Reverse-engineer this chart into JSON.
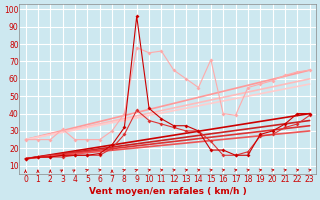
{
  "background_color": "#cde8f0",
  "grid_color": "#ffffff",
  "xlabel": "Vent moyen/en rafales ( km/h )",
  "xlim": [
    -0.5,
    23.5
  ],
  "ylim": [
    5,
    103
  ],
  "yticks": [
    10,
    20,
    30,
    40,
    50,
    60,
    70,
    80,
    90,
    100
  ],
  "xticks": [
    0,
    1,
    2,
    3,
    4,
    5,
    6,
    7,
    8,
    9,
    10,
    11,
    12,
    13,
    14,
    15,
    16,
    17,
    18,
    19,
    20,
    21,
    22,
    23
  ],
  "x": [
    0,
    1,
    2,
    3,
    4,
    5,
    6,
    7,
    8,
    9,
    10,
    11,
    12,
    13,
    14,
    15,
    16,
    17,
    18,
    19,
    20,
    21,
    22,
    23
  ],
  "series": [
    {
      "y": [
        14,
        15,
        15,
        16,
        16,
        16,
        17,
        22,
        32,
        96,
        43,
        37,
        33,
        33,
        30,
        19,
        19,
        16,
        16,
        28,
        30,
        34,
        40,
        40
      ],
      "color": "#cc0000",
      "lw": 0.8,
      "marker": "D",
      "ms": 2.0,
      "zorder": 5
    },
    {
      "y": [
        14,
        15,
        15,
        15,
        16,
        16,
        16,
        20,
        28,
        42,
        36,
        34,
        32,
        30,
        30,
        24,
        16,
        16,
        18,
        27,
        28,
        32,
        34,
        39
      ],
      "color": "#dd3333",
      "lw": 0.8,
      "marker": "D",
      "ms": 2.0,
      "zorder": 4
    },
    {
      "y": [
        25,
        25,
        25,
        31,
        25,
        25,
        25,
        30,
        40,
        78,
        75,
        76,
        65,
        60,
        55,
        71,
        40,
        39,
        55,
        57,
        59,
        62,
        64,
        65
      ],
      "color": "#ffaaaa",
      "lw": 0.8,
      "marker": "D",
      "ms": 2.0,
      "zorder": 3
    }
  ],
  "trend_lines": [
    {
      "x0": 0,
      "y0": 14,
      "x1": 23,
      "y1": 40,
      "color": "#cc0000",
      "lw": 1.2
    },
    {
      "x0": 0,
      "y0": 14,
      "x1": 23,
      "y1": 36,
      "color": "#cc2222",
      "lw": 1.2
    },
    {
      "x0": 0,
      "y0": 14,
      "x1": 23,
      "y1": 33,
      "color": "#dd3333",
      "lw": 1.2
    },
    {
      "x0": 0,
      "y0": 14,
      "x1": 23,
      "y1": 30,
      "color": "#ee5555",
      "lw": 1.2
    },
    {
      "x0": 0,
      "y0": 25,
      "x1": 23,
      "y1": 65,
      "color": "#ff9999",
      "lw": 1.2
    },
    {
      "x0": 0,
      "y0": 25,
      "x1": 23,
      "y1": 60,
      "color": "#ffbbbb",
      "lw": 1.2
    },
    {
      "x0": 0,
      "y0": 25,
      "x1": 23,
      "y1": 57,
      "color": "#ffcccc",
      "lw": 1.2
    }
  ],
  "xlabel_color": "#cc0000",
  "tick_color": "#cc0000",
  "tick_fontsize": 5.5,
  "xlabel_fontsize": 6.5,
  "arrow_color": "#cc0000",
  "arrow_angles": [
    90,
    90,
    90,
    75,
    75,
    60,
    45,
    90,
    60,
    60,
    45,
    45,
    45,
    45,
    45,
    45,
    45,
    45,
    45,
    45,
    45,
    45,
    45,
    45
  ]
}
